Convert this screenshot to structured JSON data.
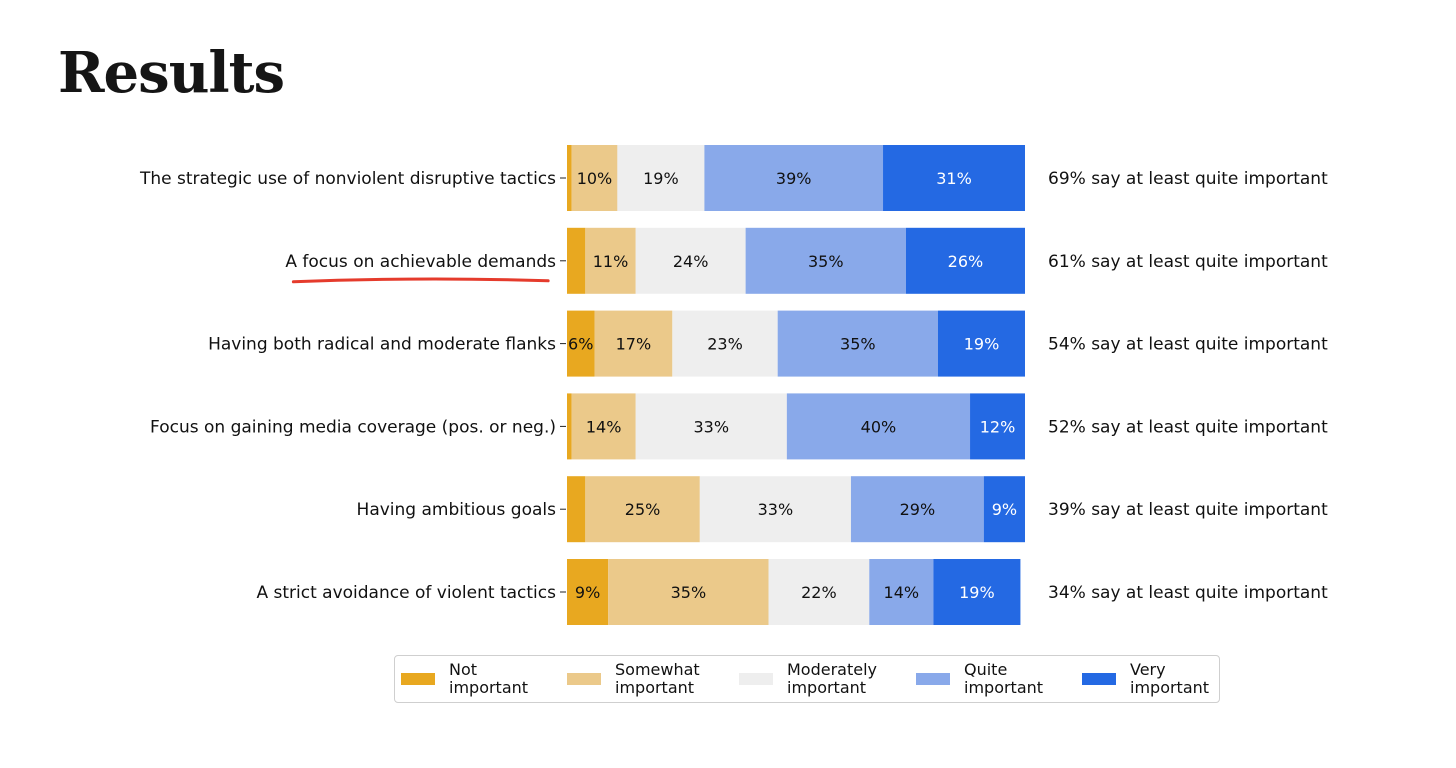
{
  "page": {
    "title": "Results"
  },
  "chart_data": {
    "type": "bar",
    "orientation": "horizontal",
    "stacked": true,
    "categories": [
      "The strategic use of nonviolent disruptive tactics",
      "A focus on achievable demands",
      "Having both radical and moderate flanks",
      "Focus on gaining media coverage (pos. or neg.)",
      "Having ambitious goals",
      "A strict avoidance of violent tactics"
    ],
    "highlighted_category": "A focus on achievable demands",
    "highlight_color": "#e53b2c",
    "series": [
      {
        "name": "Not\nimportant",
        "color": "#e8a820",
        "values": [
          1,
          4,
          6,
          1,
          4,
          9
        ],
        "labels": [
          "",
          "",
          "6%",
          "",
          "",
          "9%"
        ],
        "label_color": "#111111"
      },
      {
        "name": "Somewhat\nimportant",
        "color": "#ebc98a",
        "values": [
          10,
          11,
          17,
          14,
          25,
          35
        ],
        "labels": [
          "10%",
          "11%",
          "17%",
          "14%",
          "25%",
          "35%"
        ],
        "label_color": "#111111"
      },
      {
        "name": "Moderately\nimportant",
        "color": "#eeeeee",
        "values": [
          19,
          24,
          23,
          33,
          33,
          22
        ],
        "labels": [
          "19%",
          "24%",
          "23%",
          "33%",
          "33%",
          "22%"
        ],
        "label_color": "#111111"
      },
      {
        "name": "Quite\nimportant",
        "color": "#89a9ea",
        "values": [
          39,
          35,
          35,
          40,
          29,
          14
        ],
        "labels": [
          "39%",
          "35%",
          "35%",
          "40%",
          "29%",
          "14%"
        ],
        "label_color": "#111111"
      },
      {
        "name": "Very\nimportant",
        "color": "#2469e3",
        "values": [
          31,
          26,
          19,
          12,
          9,
          19
        ],
        "labels": [
          "31%",
          "26%",
          "19%",
          "12%",
          "9%",
          "19%"
        ],
        "label_color": "#ffffff"
      }
    ],
    "right_labels": [
      "69% say at least quite important",
      "61% say at least quite important",
      "54% say at least quite important",
      "52% say at least quite important",
      "39% say at least quite important",
      "34% say at least quite important"
    ],
    "xlim": [
      0,
      100
    ],
    "grid": false,
    "legend_position": "bottom"
  }
}
